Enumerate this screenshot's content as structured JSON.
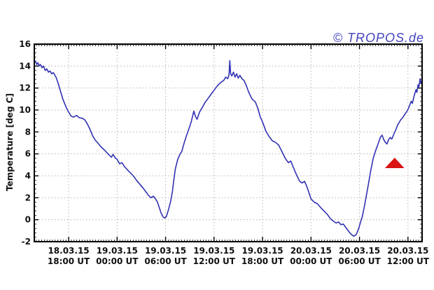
{
  "watermark": {
    "text": "© TROPOS.de",
    "color": "#4444bf"
  },
  "chart_data": {
    "type": "line",
    "title": "",
    "xlabel": "",
    "ylabel": "Temperature [deg C]",
    "ylim": [
      -2,
      16
    ],
    "yticks": [
      -2,
      0,
      2,
      4,
      6,
      8,
      10,
      12,
      14,
      16
    ],
    "y_minor_step": 0.4,
    "x_unit": "hours since 18.03.15 12:00 UT",
    "xlim_hours": [
      1.75,
      49.75
    ],
    "x_minor_step": 0.3333,
    "grid": "dotted",
    "legend": "none",
    "xticks": [
      {
        "h": 6,
        "date": "18.03.15",
        "time": "18:00 UT"
      },
      {
        "h": 12,
        "date": "19.03.15",
        "time": "00:00 UT"
      },
      {
        "h": 18,
        "date": "19.03.15",
        "time": "06:00 UT"
      },
      {
        "h": 24,
        "date": "19.03.15",
        "time": "12:00 UT"
      },
      {
        "h": 30,
        "date": "19.03.15",
        "time": "18:00 UT"
      },
      {
        "h": 36,
        "date": "20.03.15",
        "time": "00:00 UT"
      },
      {
        "h": 42,
        "date": "20.03.15",
        "time": "06:00 UT"
      },
      {
        "h": 48,
        "date": "20.03.15",
        "time": "12:00 UT"
      }
    ],
    "series": [
      {
        "name": "temperature",
        "color": "#3232b4",
        "points": [
          [
            1.75,
            14.3
          ],
          [
            1.9,
            14.45
          ],
          [
            2.05,
            14.15
          ],
          [
            2.2,
            14.3
          ],
          [
            2.35,
            14.0
          ],
          [
            2.5,
            14.15
          ],
          [
            2.7,
            13.85
          ],
          [
            2.9,
            14.0
          ],
          [
            3.1,
            13.6
          ],
          [
            3.3,
            13.75
          ],
          [
            3.5,
            13.45
          ],
          [
            3.7,
            13.55
          ],
          [
            3.9,
            13.3
          ],
          [
            4.1,
            13.4
          ],
          [
            4.44,
            13.0
          ],
          [
            4.7,
            12.45
          ],
          [
            5.0,
            11.7
          ],
          [
            5.3,
            10.95
          ],
          [
            5.74,
            10.15
          ],
          [
            6.0,
            9.8
          ],
          [
            6.3,
            9.45
          ],
          [
            6.6,
            9.35
          ],
          [
            7.0,
            9.5
          ],
          [
            7.3,
            9.3
          ],
          [
            7.7,
            9.25
          ],
          [
            8.0,
            9.1
          ],
          [
            8.3,
            8.75
          ],
          [
            8.6,
            8.3
          ],
          [
            9.0,
            7.6
          ],
          [
            9.3,
            7.25
          ],
          [
            9.6,
            7.0
          ],
          [
            10.0,
            6.65
          ],
          [
            10.5,
            6.3
          ],
          [
            11.0,
            5.9
          ],
          [
            11.3,
            5.7
          ],
          [
            11.5,
            5.95
          ],
          [
            11.75,
            5.65
          ],
          [
            12.0,
            5.5
          ],
          [
            12.3,
            5.1
          ],
          [
            12.6,
            5.2
          ],
          [
            12.9,
            4.85
          ],
          [
            13.2,
            4.6
          ],
          [
            13.6,
            4.3
          ],
          [
            14.0,
            4.0
          ],
          [
            14.4,
            3.6
          ],
          [
            14.8,
            3.25
          ],
          [
            15.2,
            2.9
          ],
          [
            15.6,
            2.5
          ],
          [
            15.9,
            2.2
          ],
          [
            16.2,
            2.0
          ],
          [
            16.5,
            2.15
          ],
          [
            16.8,
            1.85
          ],
          [
            17.0,
            1.6
          ],
          [
            17.2,
            1.15
          ],
          [
            17.45,
            0.6
          ],
          [
            17.7,
            0.25
          ],
          [
            17.9,
            0.15
          ],
          [
            18.1,
            0.3
          ],
          [
            18.35,
            0.9
          ],
          [
            18.6,
            1.6
          ],
          [
            18.85,
            2.6
          ],
          [
            19.0,
            3.5
          ],
          [
            19.2,
            4.6
          ],
          [
            19.5,
            5.5
          ],
          [
            19.8,
            6.0
          ],
          [
            20.0,
            6.2
          ],
          [
            20.3,
            7.0
          ],
          [
            20.6,
            7.7
          ],
          [
            20.9,
            8.3
          ],
          [
            21.2,
            9.0
          ],
          [
            21.5,
            9.9
          ],
          [
            21.7,
            9.4
          ],
          [
            21.9,
            9.15
          ],
          [
            22.2,
            9.8
          ],
          [
            22.6,
            10.3
          ],
          [
            22.9,
            10.7
          ],
          [
            23.2,
            11.0
          ],
          [
            23.5,
            11.3
          ],
          [
            23.8,
            11.6
          ],
          [
            24.0,
            11.8
          ],
          [
            24.3,
            12.1
          ],
          [
            24.6,
            12.35
          ],
          [
            24.9,
            12.55
          ],
          [
            25.2,
            12.7
          ],
          [
            25.45,
            13.0
          ],
          [
            25.7,
            12.85
          ],
          [
            25.85,
            13.2
          ],
          [
            25.95,
            14.5
          ],
          [
            26.05,
            13.3
          ],
          [
            26.2,
            13.1
          ],
          [
            26.4,
            13.45
          ],
          [
            26.6,
            13.0
          ],
          [
            26.8,
            13.3
          ],
          [
            27.0,
            12.9
          ],
          [
            27.2,
            13.15
          ],
          [
            27.45,
            12.85
          ],
          [
            27.7,
            12.7
          ],
          [
            28.0,
            12.2
          ],
          [
            28.3,
            11.6
          ],
          [
            28.7,
            11.0
          ],
          [
            29.1,
            10.75
          ],
          [
            29.4,
            10.2
          ],
          [
            29.7,
            9.4
          ],
          [
            30.0,
            8.9
          ],
          [
            30.4,
            8.1
          ],
          [
            30.8,
            7.6
          ],
          [
            31.2,
            7.2
          ],
          [
            31.6,
            7.05
          ],
          [
            32.0,
            6.8
          ],
          [
            32.4,
            6.2
          ],
          [
            32.8,
            5.6
          ],
          [
            33.2,
            5.2
          ],
          [
            33.5,
            5.35
          ],
          [
            33.8,
            4.8
          ],
          [
            34.2,
            4.1
          ],
          [
            34.6,
            3.5
          ],
          [
            34.9,
            3.35
          ],
          [
            35.2,
            3.5
          ],
          [
            35.5,
            3.0
          ],
          [
            36.0,
            1.9
          ],
          [
            36.4,
            1.6
          ],
          [
            36.8,
            1.45
          ],
          [
            37.2,
            1.1
          ],
          [
            37.6,
            0.8
          ],
          [
            38.0,
            0.5
          ],
          [
            38.4,
            0.1
          ],
          [
            38.8,
            -0.15
          ],
          [
            39.1,
            -0.3
          ],
          [
            39.4,
            -0.2
          ],
          [
            39.7,
            -0.45
          ],
          [
            40.0,
            -0.4
          ],
          [
            40.3,
            -0.7
          ],
          [
            40.7,
            -1.1
          ],
          [
            41.0,
            -1.35
          ],
          [
            41.3,
            -1.5
          ],
          [
            41.6,
            -1.35
          ],
          [
            41.9,
            -0.8
          ],
          [
            42.1,
            -0.3
          ],
          [
            42.35,
            0.3
          ],
          [
            42.6,
            1.2
          ],
          [
            42.85,
            2.2
          ],
          [
            43.1,
            3.2
          ],
          [
            43.4,
            4.5
          ],
          [
            43.7,
            5.6
          ],
          [
            44.0,
            6.3
          ],
          [
            44.3,
            6.9
          ],
          [
            44.6,
            7.55
          ],
          [
            44.8,
            7.7
          ],
          [
            45.0,
            7.3
          ],
          [
            45.2,
            7.05
          ],
          [
            45.4,
            6.9
          ],
          [
            45.6,
            7.3
          ],
          [
            45.8,
            7.5
          ],
          [
            46.0,
            7.35
          ],
          [
            46.15,
            7.6
          ],
          [
            46.3,
            7.9
          ],
          [
            46.5,
            8.2
          ],
          [
            46.7,
            8.6
          ],
          [
            46.9,
            8.85
          ],
          [
            47.1,
            9.1
          ],
          [
            47.35,
            9.3
          ],
          [
            47.6,
            9.6
          ],
          [
            47.8,
            9.8
          ],
          [
            48.0,
            10.05
          ],
          [
            48.2,
            10.4
          ],
          [
            48.4,
            10.8
          ],
          [
            48.55,
            10.6
          ],
          [
            48.7,
            11.1
          ],
          [
            48.85,
            11.5
          ],
          [
            49.0,
            11.85
          ],
          [
            49.1,
            11.6
          ],
          [
            49.25,
            12.3
          ],
          [
            49.35,
            12.1
          ],
          [
            49.5,
            12.85
          ],
          [
            49.6,
            12.45
          ],
          [
            49.75,
            12.7
          ]
        ]
      }
    ],
    "annotations": [
      {
        "type": "triangle-marker",
        "color": "#d81414",
        "apex": [
          46.35,
          5.65
        ],
        "base_y": 4.7,
        "base_x": [
          45.15,
          47.55
        ]
      }
    ]
  }
}
